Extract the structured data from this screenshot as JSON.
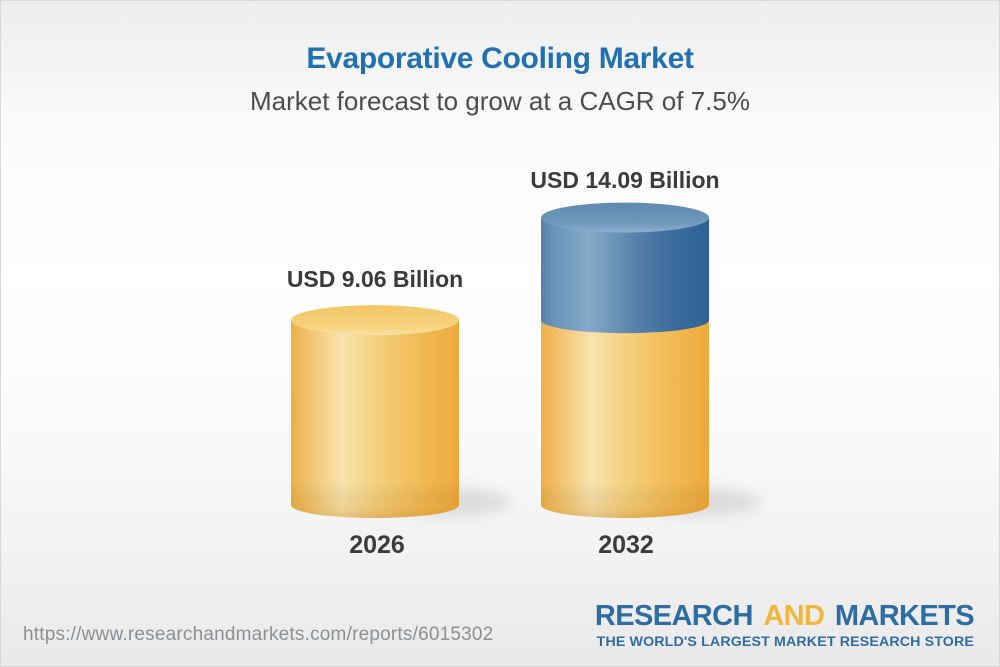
{
  "header": {
    "title": "Evaporative Cooling Market",
    "subtitle": "Market forecast to grow at a CAGR of 7.5%"
  },
  "chart_data": {
    "type": "bar",
    "variant": "3d-cylinder",
    "title": "Evaporative Cooling Market",
    "subtitle": "Market forecast to grow at a CAGR of 7.5%",
    "unit": "USD Billion",
    "cagr_percent": 7.5,
    "categories": [
      "2026",
      "2032"
    ],
    "values": [
      9.06,
      14.09
    ],
    "bars": [
      {
        "category": "2026",
        "value": 9.06,
        "value_label": "USD 9.06 Billion",
        "segments": [
          {
            "value": 9.06,
            "color_key": "gold"
          }
        ]
      },
      {
        "category": "2032",
        "value": 14.09,
        "value_label": "USD 14.09 Billion",
        "segments": [
          {
            "value": 9.06,
            "color_key": "gold"
          },
          {
            "value": 5.03,
            "color_key": "blue"
          }
        ]
      }
    ],
    "colors": {
      "gold_base": "#F0BA52",
      "gold_highlight": "#F8E3AD",
      "blue_base": "#4F7CA8",
      "blue_highlight": "#85AAC9",
      "title_blue": "#2171B2",
      "label_gray": "#3B3B3B"
    },
    "legend": null,
    "grid": false
  },
  "footer": {
    "url": "https://www.researchandmarkets.com/reports/6015302",
    "logo": {
      "part1": "RESEARCH",
      "part2": "AND",
      "part3": "MARKETS",
      "tagline": "THE WORLD'S LARGEST MARKET RESEARCH STORE"
    }
  }
}
